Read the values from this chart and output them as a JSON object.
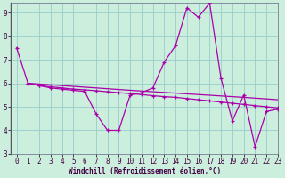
{
  "xlabel": "Windchill (Refroidissement éolien,°C)",
  "ylim": [
    3,
    9.4
  ],
  "xlim": [
    -0.5,
    23
  ],
  "bg_color": "#cceedd",
  "line_color": "#aa00aa",
  "grid_color": "#99cccc",
  "line1_x": [
    0,
    1,
    2,
    3,
    4,
    5,
    6,
    7,
    8,
    9,
    10,
    11,
    12,
    13,
    14,
    15,
    16,
    17,
    18,
    19,
    20,
    21,
    22,
    23
  ],
  "line1_y": [
    7.5,
    6.0,
    5.9,
    5.8,
    5.75,
    5.7,
    5.65,
    4.7,
    4.0,
    4.0,
    5.5,
    5.6,
    5.8,
    6.9,
    7.6,
    9.2,
    8.8,
    9.4,
    6.2,
    4.4,
    5.5,
    3.3,
    4.8,
    4.9
  ],
  "line2_x": [
    1,
    2,
    3,
    4,
    5,
    6,
    7,
    8,
    9,
    10,
    11,
    12,
    13,
    14,
    15,
    16,
    17,
    18,
    19,
    20,
    21,
    22,
    23
  ],
  "line2_y": [
    6.0,
    5.9,
    5.85,
    5.8,
    5.75,
    5.72,
    5.68,
    5.64,
    5.6,
    5.56,
    5.52,
    5.47,
    5.43,
    5.4,
    5.35,
    5.3,
    5.25,
    5.2,
    5.15,
    5.1,
    5.05,
    5.0,
    4.95
  ],
  "line3_x": [
    1,
    10,
    20,
    23
  ],
  "line3_y": [
    6.0,
    5.7,
    5.4,
    5.3
  ],
  "xticks": [
    0,
    1,
    2,
    3,
    4,
    5,
    6,
    7,
    8,
    9,
    10,
    11,
    12,
    13,
    14,
    15,
    16,
    17,
    18,
    19,
    20,
    21,
    22,
    23
  ],
  "yticks": [
    3,
    4,
    5,
    6,
    7,
    8,
    9
  ],
  "tick_fontsize": 5.5,
  "xlabel_fontsize": 5.5
}
